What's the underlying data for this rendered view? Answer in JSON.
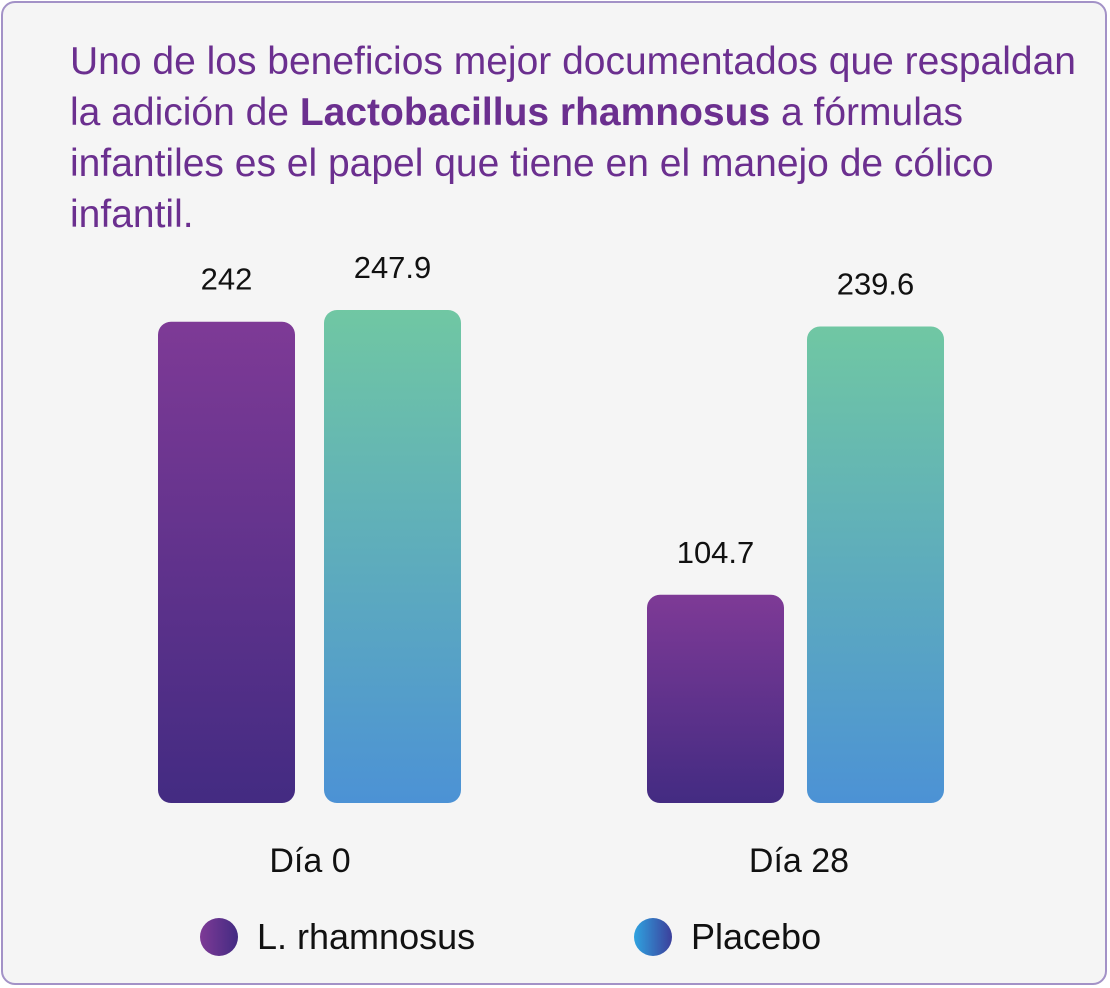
{
  "headline": {
    "before": "Uno de los beneficios mejor documentados que respaldan la adición de ",
    "emphasis": "Lactobacillus rhamnosus",
    "after": " a fórmulas infantiles es el papel que tiene en el manejo de cólico infantil."
  },
  "colors": {
    "title": "#6b2f8f",
    "lr_top": "#7e3a96",
    "lr_bottom": "#432b82",
    "placebo_top": "#70c7a3",
    "placebo_bottom": "#4c92d5",
    "border": "#a392c7",
    "background": "#f5f5f5"
  },
  "chart_data": {
    "type": "bar",
    "categories": [
      "Día 0",
      "Día 28"
    ],
    "series": [
      {
        "name": "L. rhamnosus",
        "values": [
          242,
          104.7
        ],
        "value_labels": [
          "242",
          "104.7"
        ]
      },
      {
        "name": "Placebo",
        "values": [
          247.9,
          239.6
        ],
        "value_labels": [
          "247.9",
          "239.6"
        ]
      }
    ],
    "legend_position": "bottom",
    "grid": false,
    "ylim": [
      0,
      247.9
    ]
  }
}
